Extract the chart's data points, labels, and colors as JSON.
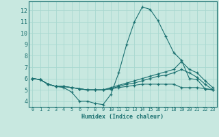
{
  "title": "",
  "xlabel": "Humidex (Indice chaleur)",
  "ylabel": "",
  "background_color": "#c8e8e0",
  "grid_color": "#a8d8d0",
  "line_color": "#1a7070",
  "xlim": [
    -0.5,
    23.5
  ],
  "ylim": [
    3.5,
    12.8
  ],
  "xticks": [
    0,
    1,
    2,
    3,
    4,
    5,
    6,
    7,
    8,
    9,
    10,
    11,
    12,
    13,
    14,
    15,
    16,
    17,
    18,
    19,
    20,
    21,
    22,
    23
  ],
  "yticks": [
    4,
    5,
    6,
    7,
    8,
    9,
    10,
    11,
    12
  ],
  "series": [
    [
      6.0,
      5.9,
      5.5,
      5.3,
      5.2,
      4.8,
      4.0,
      4.0,
      3.8,
      3.7,
      4.6,
      6.5,
      9.0,
      11.0,
      12.3,
      12.1,
      11.1,
      9.7,
      8.3,
      7.6,
      6.0,
      5.9,
      5.1,
      5.0
    ],
    [
      6.0,
      5.9,
      5.5,
      5.3,
      5.3,
      5.2,
      5.1,
      5.0,
      5.0,
      5.0,
      5.2,
      5.4,
      5.6,
      5.8,
      6.0,
      6.2,
      6.4,
      6.6,
      6.8,
      7.5,
      6.8,
      6.5,
      5.8,
      5.2
    ],
    [
      6.0,
      5.9,
      5.5,
      5.3,
      5.3,
      5.2,
      5.1,
      5.0,
      5.0,
      5.0,
      5.1,
      5.3,
      5.5,
      5.6,
      5.8,
      6.0,
      6.2,
      6.3,
      6.5,
      6.8,
      6.5,
      6.1,
      5.5,
      5.0
    ],
    [
      6.0,
      5.9,
      5.5,
      5.3,
      5.3,
      5.2,
      5.1,
      5.0,
      5.0,
      5.0,
      5.1,
      5.2,
      5.3,
      5.4,
      5.5,
      5.5,
      5.5,
      5.5,
      5.5,
      5.2,
      5.2,
      5.2,
      5.1,
      5.0
    ]
  ]
}
